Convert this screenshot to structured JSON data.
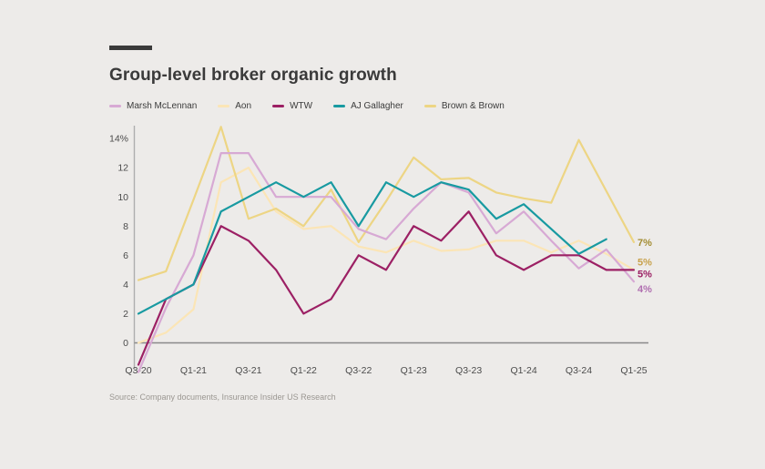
{
  "page": {
    "background": "#edebe9"
  },
  "header": {
    "title": "Group-level broker organic growth"
  },
  "footer": {
    "source": "Source: Company documents, Insurance Insider US Research"
  },
  "chart_data": {
    "type": "line",
    "title": "Group-level broker organic growth",
    "x_labels": [
      "Q3-20",
      "Q4-20",
      "Q1-21",
      "Q2-21",
      "Q3-21",
      "Q4-21",
      "Q1-22",
      "Q2-22",
      "Q3-22",
      "Q4-22",
      "Q1-23",
      "Q2-23",
      "Q3-23",
      "Q4-23",
      "Q1-24",
      "Q2-24",
      "Q3-24",
      "Q4-24",
      "Q1-25"
    ],
    "x_tick_indices": [
      0,
      2,
      4,
      6,
      8,
      10,
      12,
      14,
      16,
      18
    ],
    "y_tick_values": [
      0,
      2,
      4,
      6,
      8,
      10,
      12,
      14
    ],
    "y_tick_labels": [
      "0",
      "2",
      "4",
      "6",
      "8",
      "10",
      "12",
      "14%"
    ],
    "ylim": [
      -2.2,
      15
    ],
    "grid": false,
    "legend_position": "top",
    "series": [
      {
        "name": "Marsh McLennan",
        "color": "#d7a9d4",
        "end_label": "4%",
        "end_label_color": "#b06fb0",
        "values": [
          -2,
          2.4,
          6,
          13,
          13,
          10,
          10,
          10,
          7.8,
          7.1,
          9.2,
          11,
          10.3,
          7.5,
          9,
          7,
          5.1,
          6.4,
          4.2
        ]
      },
      {
        "name": "Aon",
        "color": "#fbe5b6",
        "end_label": "5%",
        "end_label_color": "#c8a24c",
        "values": [
          0,
          0.7,
          2.3,
          11,
          12,
          9,
          7.8,
          8,
          6.6,
          6.2,
          7,
          6.3,
          6.4,
          7,
          7,
          6.2,
          7,
          6.1,
          5
        ]
      },
      {
        "name": "WTW",
        "color": "#9c2064",
        "end_label": "5%",
        "end_label_color": "#9c2064",
        "values": [
          -1.5,
          3,
          4,
          8,
          7,
          5,
          2,
          3,
          6,
          5,
          8,
          7,
          9,
          6,
          5,
          6,
          6,
          5,
          5
        ]
      },
      {
        "name": "AJ Gallagher",
        "color": "#189aa1",
        "end_label": null,
        "values": [
          2,
          3,
          4,
          9,
          10,
          11,
          10,
          11,
          8,
          11,
          10,
          11,
          10.5,
          8.5,
          9.5,
          7.8,
          6.1,
          7.1,
          null
        ]
      },
      {
        "name": "Brown & Brown",
        "color": "#edd584",
        "end_label": "7%",
        "end_label_color": "#a38c31",
        "values": [
          4.3,
          4.9,
          9.8,
          14.8,
          8.5,
          9.2,
          8,
          10.5,
          6.9,
          9.7,
          12.7,
          11.2,
          11.3,
          10.3,
          9.9,
          9.6,
          13.9,
          10.4,
          6.9
        ]
      }
    ]
  }
}
